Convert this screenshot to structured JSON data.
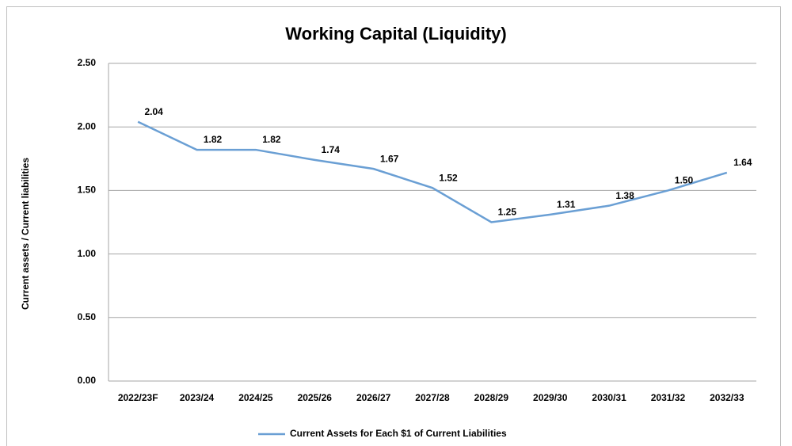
{
  "chart_data": {
    "type": "line",
    "title": "Working Capital (Liquidity)",
    "y_label": "Current assets / Current liabilities",
    "categories": [
      "2022/23F",
      "2023/24",
      "2024/25",
      "2025/26",
      "2026/27",
      "2027/28",
      "2028/29",
      "2029/30",
      "2030/31",
      "2031/32",
      "2032/33"
    ],
    "series": [
      {
        "name": "Current Assets for Each $1 of Current Liabilities",
        "color": "#6a9fd4",
        "values": [
          2.04,
          1.82,
          1.82,
          1.74,
          1.67,
          1.52,
          1.25,
          1.31,
          1.38,
          1.5,
          1.64
        ],
        "value_labels": [
          "2.04",
          "1.82",
          "1.82",
          "1.74",
          "1.67",
          "1.52",
          "1.25",
          "1.31",
          "1.38",
          "1.50",
          "1.64"
        ]
      }
    ],
    "ylim": [
      0,
      2.5
    ],
    "yticks": [
      {
        "value": 0,
        "label": "0.00"
      },
      {
        "value": 0.5,
        "label": "0.50"
      },
      {
        "value": 1,
        "label": "1.00"
      },
      {
        "value": 1.5,
        "label": "1.50"
      },
      {
        "value": 2,
        "label": "2.00"
      },
      {
        "value": 2.5,
        "label": "2.50"
      }
    ],
    "grid": true,
    "legend": "bottom"
  }
}
